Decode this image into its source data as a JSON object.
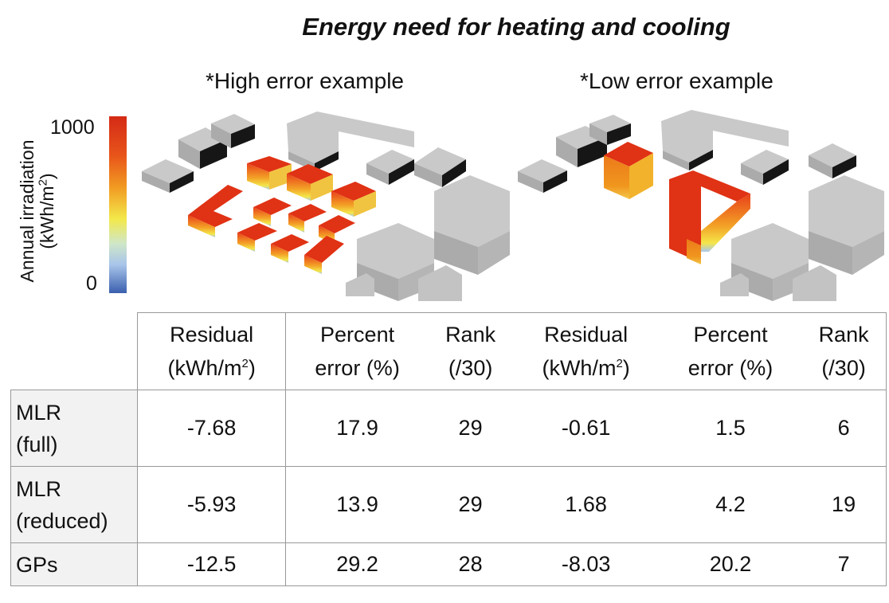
{
  "title": "Energy need for heating and cooling",
  "subtitle_high": "*High error example",
  "subtitle_low": "*Low error example",
  "colorbar": {
    "label_line1": "Annual irradiation",
    "label_line2": "(kWh/m",
    "label_sup": "2",
    "label_close": ")",
    "max": "1000",
    "min": "0"
  },
  "table": {
    "headers": [
      {
        "line1": "Residual",
        "line2": "(kWh/m",
        "sup": "2",
        "close": ")"
      },
      {
        "line1": "Percent",
        "line2": "error (%)",
        "sup": "",
        "close": ""
      },
      {
        "line1": "Rank",
        "line2": "(/30)",
        "sup": "",
        "close": ""
      },
      {
        "line1": "Residual",
        "line2": "(kWh/m",
        "sup": "2",
        "close": ")"
      },
      {
        "line1": "Percent",
        "line2": "error (%)",
        "sup": "",
        "close": ""
      },
      {
        "line1": "Rank",
        "line2": "(/30)",
        "sup": "",
        "close": ""
      }
    ],
    "rows": [
      {
        "label1": "MLR",
        "label2": "(full)",
        "values": [
          "-7.68",
          "17.9",
          "29",
          "-0.61",
          "1.5",
          "6"
        ]
      },
      {
        "label1": "MLR",
        "label2": "(reduced)",
        "values": [
          "-5.93",
          "13.9",
          "29",
          "1.68",
          "4.2",
          "19"
        ]
      },
      {
        "label1": "GPs",
        "label2": "",
        "values": [
          "-12.5",
          "29.2",
          "28",
          "-8.03",
          "20.2",
          "7"
        ]
      }
    ]
  },
  "colors": {
    "hot": "#e03214",
    "warm": "#f08a1c",
    "neutral_top": "#c8c8c8",
    "neutral_side": "#a9a9a9",
    "shadow": "#111111"
  }
}
